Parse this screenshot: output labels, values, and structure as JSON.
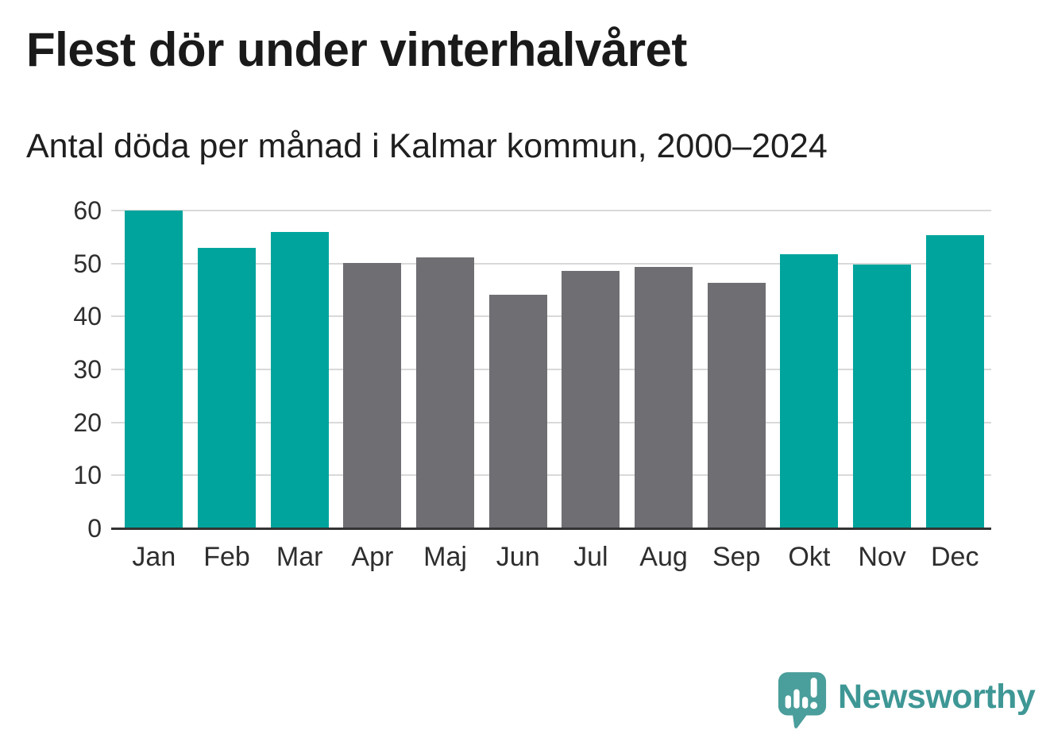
{
  "header": {
    "title": "Flest dör under vinterhalvåret",
    "subtitle": "Antal döda per månad i Kalmar kommun, 2000–2024"
  },
  "chart_data": {
    "type": "bar",
    "title": "Flest dör under vinterhalvåret",
    "subtitle": "Antal döda per månad i Kalmar kommun, 2000–2024",
    "categories": [
      "Jan",
      "Feb",
      "Mar",
      "Apr",
      "Maj",
      "Jun",
      "Jul",
      "Aug",
      "Sep",
      "Okt",
      "Nov",
      "Dec"
    ],
    "values": [
      60.0,
      52.9,
      56.0,
      50.1,
      51.1,
      44.1,
      48.6,
      49.4,
      46.4,
      51.7,
      49.8,
      55.4
    ],
    "highlight": [
      true,
      true,
      true,
      false,
      false,
      false,
      false,
      false,
      false,
      true,
      true,
      true
    ],
    "xlabel": "",
    "ylabel": "",
    "ylim": [
      0,
      60
    ],
    "yticks": [
      0,
      10,
      20,
      30,
      40,
      50,
      60
    ],
    "grid": "horizontal",
    "legend": "none"
  },
  "colors": {
    "winter_bar": "#00a49c",
    "summer_bar": "#6e6e73",
    "gridline": "#d9d9d9",
    "axis_line": "#333333",
    "title_text": "#1a1a1a",
    "axis_text": "#2e2e2e",
    "logo_bubble": "#4a9e9b",
    "logo_text": "#3e9795"
  },
  "footer": {
    "brand": "Newsworthy"
  }
}
